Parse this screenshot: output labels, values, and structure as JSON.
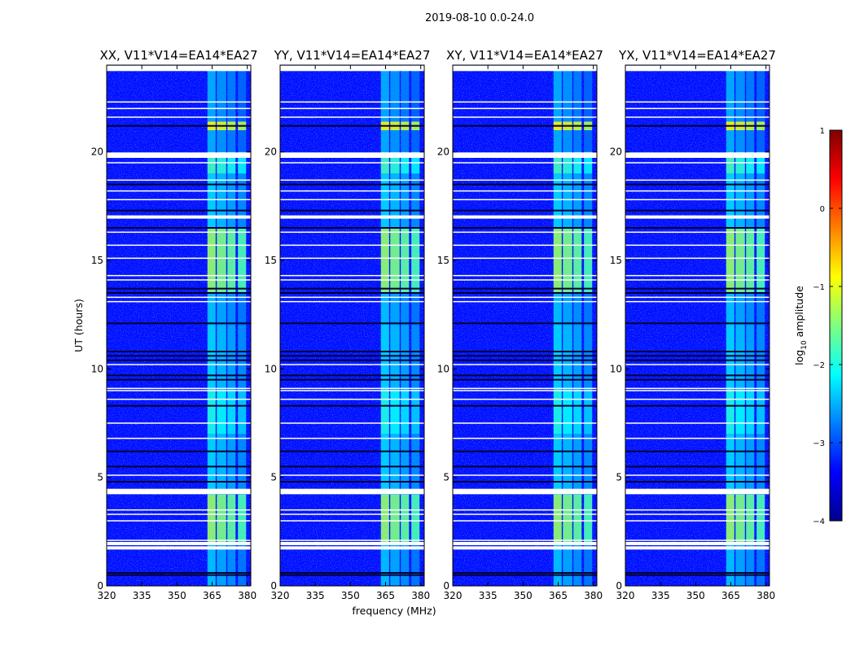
{
  "chart_data": {
    "type": "heatmap",
    "suptitle": "2019-08-10 0.0-24.0",
    "xlabel": "frequency (MHz)",
    "ylabel": "UT (hours)",
    "xlim": [
      320,
      381.5
    ],
    "ylim": [
      0,
      24
    ],
    "xticks": [
      "320",
      "335",
      "350",
      "365",
      "380"
    ],
    "yticks": [
      "0",
      "5",
      "10",
      "15",
      "20"
    ],
    "xtick_values": [
      320,
      335,
      350,
      365,
      380
    ],
    "ytick_values": [
      0,
      5,
      10,
      15,
      20
    ],
    "panels": [
      {
        "title": "XX, V11*V14=EA14*EA27"
      },
      {
        "title": "YY, V11*V14=EA14*EA27"
      },
      {
        "title": "XY, V11*V14=EA14*EA27"
      },
      {
        "title": "YX, V11*V14=EA14*EA27"
      }
    ],
    "colorbar": {
      "label_prefix": "log",
      "label_subscript": "10",
      "label_suffix": " amplitude",
      "ticks": [
        "1",
        "0",
        "−1",
        "−2",
        "−3",
        "−4"
      ],
      "tick_values": [
        1,
        0,
        -1,
        -2,
        -3,
        -4
      ],
      "range": [
        -4,
        1
      ],
      "colormap": "jet"
    },
    "background_level": -3.3,
    "rfi_bands_mhz": [
      [
        363,
        366.5
      ],
      [
        367,
        371
      ],
      [
        371.5,
        375
      ],
      [
        376,
        379.5
      ]
    ],
    "rfi_levels_by_hour": [
      {
        "start": 0,
        "end": 2,
        "level": -2.4
      },
      {
        "start": 2,
        "end": 4.2,
        "level": -1.4
      },
      {
        "start": 4.2,
        "end": 7,
        "level": -2.3
      },
      {
        "start": 7,
        "end": 9,
        "level": -2.0
      },
      {
        "start": 9,
        "end": 12,
        "level": -2.3
      },
      {
        "start": 12,
        "end": 13.5,
        "level": -2.4
      },
      {
        "start": 13.5,
        "end": 16.5,
        "level": -1.4
      },
      {
        "start": 16.5,
        "end": 19,
        "level": -2.3
      },
      {
        "start": 19,
        "end": 20,
        "level": -1.8
      },
      {
        "start": 20,
        "end": 21,
        "level": -2.5
      },
      {
        "start": 21,
        "end": 21.4,
        "level": -0.9
      },
      {
        "start": 21.4,
        "end": 24,
        "level": -2.5
      }
    ],
    "flagged_rows_hours": [
      1.75,
      1.95,
      4.3,
      4.4,
      17.0,
      19.8,
      19.9,
      23.8,
      23.9
    ],
    "thin_white_rows_hours": [
      2.1,
      3.0,
      3.3,
      3.5,
      5.1,
      6.8,
      7.5,
      8.6,
      9.0,
      9.1,
      10.2,
      13.1,
      13.3,
      14.1,
      14.3,
      15.1,
      15.7,
      16.3,
      17.8,
      18.2,
      18.7,
      19.5,
      21.6,
      22.0,
      22.3
    ],
    "dark_rows_hours": [
      0.5,
      0.6,
      4.8,
      5.5,
      6.2,
      8.3,
      9.5,
      9.7,
      10.4,
      10.6,
      10.8,
      12.1,
      13.5,
      13.7,
      16.5,
      18.5,
      21.2,
      17.3
    ]
  }
}
